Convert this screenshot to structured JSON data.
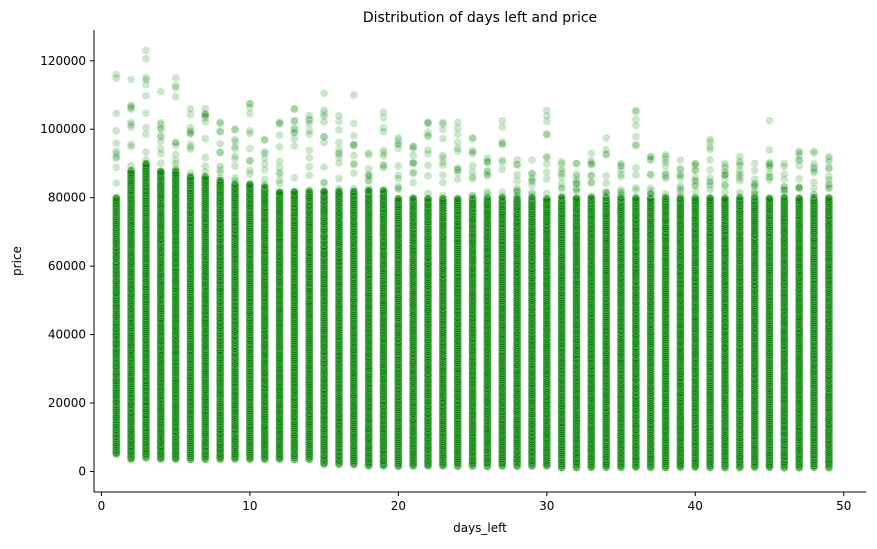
{
  "chart_data": {
    "type": "scatter",
    "title": "Distribution of days left and price",
    "xlabel": "days_left",
    "ylabel": "price",
    "xlim": [
      -0.5,
      51.5
    ],
    "ylim": [
      -6000,
      129000
    ],
    "xticks": [
      0,
      10,
      20,
      30,
      40,
      50
    ],
    "xtick_labels": [
      "0",
      "10",
      "20",
      "30",
      "40",
      "50"
    ],
    "yticks": [
      0,
      20000,
      40000,
      60000,
      80000,
      100000,
      120000
    ],
    "ytick_labels": [
      "0",
      "20000",
      "40000",
      "60000",
      "80000",
      "100000",
      "120000"
    ],
    "grid": false,
    "legend": "none",
    "marker_color": "#008000",
    "marker_alpha": 0.2,
    "marker_edge_color": "#ffffff",
    "series": [
      {
        "x": [
          1,
          2,
          3,
          4,
          5,
          6,
          7,
          8,
          9,
          10,
          11,
          12,
          13,
          14,
          15,
          16,
          17,
          18,
          19,
          20,
          21,
          22,
          23,
          24,
          25,
          26,
          27,
          28,
          29,
          30,
          31,
          32,
          33,
          34,
          35,
          36,
          37,
          38,
          39,
          40,
          41,
          42,
          43,
          44,
          45,
          46,
          47,
          48,
          49
        ],
        "y_min": [
          5000,
          3500,
          4000,
          3500,
          3500,
          3500,
          3500,
          3500,
          3500,
          3500,
          3500,
          3500,
          3500,
          3500,
          2000,
          2000,
          2000,
          1500,
          1500,
          1500,
          1500,
          1500,
          1500,
          1500,
          1500,
          1500,
          1500,
          1500,
          1500,
          1500,
          1100,
          1100,
          1100,
          1100,
          1100,
          1100,
          1100,
          1100,
          1100,
          1100,
          1100,
          1100,
          1100,
          1100,
          1100,
          1100,
          1100,
          1100,
          1100
        ],
        "y_dense_max": [
          80000,
          88000,
          90000,
          88000,
          88000,
          86000,
          86000,
          85000,
          84000,
          84000,
          83000,
          82000,
          82000,
          82000,
          82000,
          82000,
          82000,
          82000,
          82000,
          80000,
          80000,
          80000,
          80000,
          80000,
          80000,
          80000,
          80000,
          80000,
          80000,
          80000,
          80000,
          80000,
          80000,
          80000,
          80000,
          80000,
          80000,
          80000,
          80000,
          80000,
          80000,
          80000,
          80000,
          80000,
          80000,
          80000,
          80000,
          80000,
          80000
        ],
        "y_max": [
          116000,
          114500,
          123000,
          111000,
          115000,
          106000,
          106000,
          102000,
          100000,
          107500,
          97000,
          102000,
          106000,
          104000,
          110500,
          104000,
          110000,
          93000,
          105000,
          97500,
          95000,
          102000,
          102000,
          102000,
          97500,
          91500,
          102500,
          91000,
          91000,
          105500,
          90500,
          90000,
          93000,
          97500,
          90000,
          105500,
          92000,
          92500,
          91000,
          90000,
          97000,
          90000,
          92000,
          90000,
          102500,
          90000,
          93500,
          93500,
          92000
        ]
      }
    ]
  }
}
